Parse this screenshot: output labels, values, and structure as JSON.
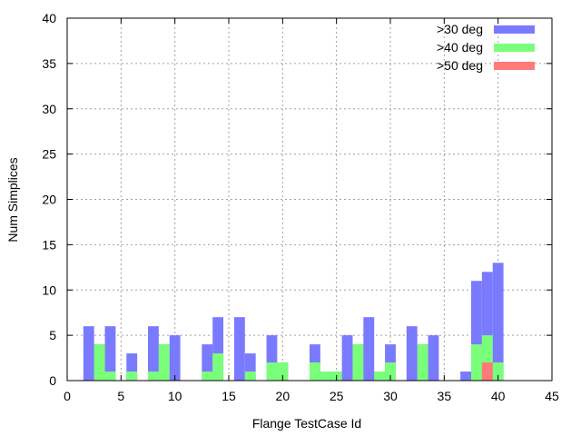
{
  "chart_data": {
    "type": "bar",
    "title": "",
    "xlabel": "Flange TestCase Id",
    "ylabel": "Num Simplices",
    "xlim": [
      0,
      45
    ],
    "ylim": [
      0,
      40
    ],
    "xticks": [
      "0",
      "5",
      "10",
      "15",
      "20",
      "25",
      "30",
      "35",
      "40",
      "45"
    ],
    "yticks": [
      "0",
      "5",
      "10",
      "15",
      "20",
      "25",
      "30",
      "35",
      "40"
    ],
    "grid": true,
    "legend_position": "top-right",
    "series": [
      {
        "name": ">30 deg",
        "color": "#7a7aff",
        "x": [
          2,
          3,
          4,
          6,
          8,
          9,
          10,
          13,
          14,
          16,
          17,
          19,
          20,
          23,
          24,
          25,
          26,
          27,
          28,
          29,
          30,
          32,
          33,
          34,
          37,
          38,
          39,
          40
        ],
        "values": [
          6,
          4,
          6,
          3,
          6,
          4,
          5,
          4,
          7,
          7,
          3,
          5,
          2,
          4,
          1,
          1,
          5,
          4,
          7,
          1,
          4,
          6,
          4,
          5,
          1,
          11,
          12,
          13
        ]
      },
      {
        "name": ">40 deg",
        "color": "#7aff7a",
        "x": [
          3,
          4,
          6,
          8,
          9,
          13,
          14,
          17,
          19,
          20,
          23,
          24,
          25,
          27,
          29,
          30,
          33,
          38,
          39,
          40
        ],
        "values": [
          4,
          1,
          1,
          1,
          4,
          1,
          3,
          1,
          2,
          2,
          2,
          1,
          1,
          4,
          1,
          2,
          4,
          4,
          5,
          2
        ]
      },
      {
        "name": ">50 deg",
        "color": "#ff7a7a",
        "x": [
          39
        ],
        "values": [
          2
        ]
      }
    ]
  }
}
